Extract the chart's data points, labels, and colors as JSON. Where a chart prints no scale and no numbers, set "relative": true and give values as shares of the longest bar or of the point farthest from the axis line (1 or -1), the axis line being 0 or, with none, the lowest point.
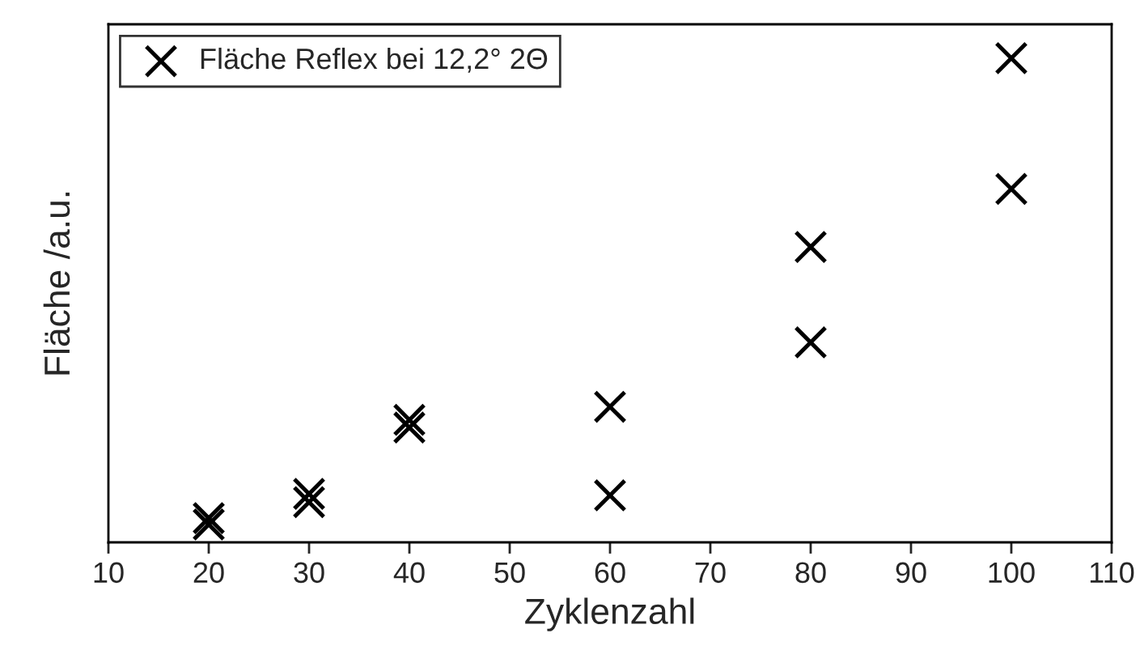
{
  "chart_data": {
    "type": "scatter",
    "xlabel": "Zyklenzahl",
    "ylabel": "Fläche /a.u.",
    "relative": true,
    "xlim": [
      10,
      110
    ],
    "xticks": [
      10,
      20,
      30,
      40,
      50,
      60,
      70,
      80,
      90,
      100,
      110
    ],
    "series": [
      {
        "name": "Fläche Reflex bei 12,2° 2Θ",
        "color": "#000000",
        "x": [
          20,
          20,
          30,
          30,
          40,
          40,
          60,
          60,
          80,
          80,
          100,
          100
        ],
        "values": [
          0.05,
          0.037,
          0.1,
          0.083,
          0.253,
          0.237,
          0.28,
          0.097,
          0.61,
          0.413,
          1.0,
          0.73
        ]
      }
    ],
    "marker": "cross",
    "legend": "top left",
    "tick_labels": "x",
    "grid": false
  }
}
